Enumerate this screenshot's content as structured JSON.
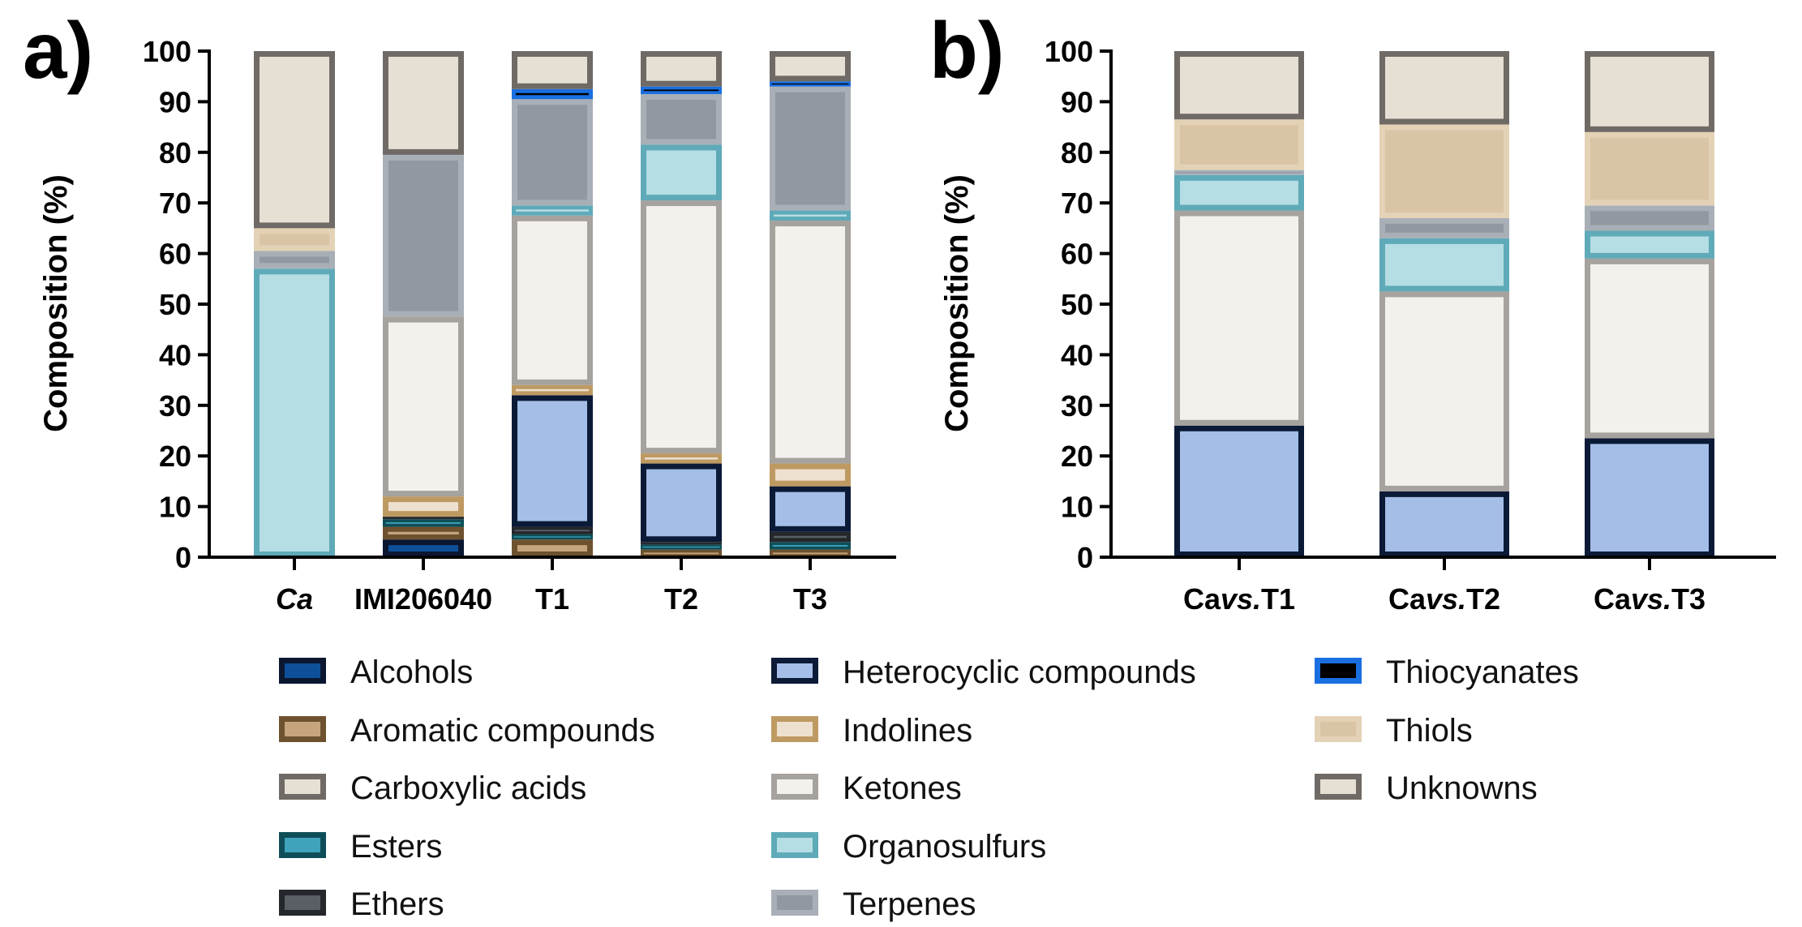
{
  "colors": {
    "Alcohols": {
      "fill": "#0E4F9A",
      "stroke": "#0B1730"
    },
    "Aromatic compounds": {
      "fill": "#C6A57E",
      "stroke": "#6E5230"
    },
    "Carboxylic acids": {
      "fill": "#E6DFD4",
      "stroke": "#6F6A65"
    },
    "Esters": {
      "fill": "#3FA3BC",
      "stroke": "#0F4E58"
    },
    "Ethers": {
      "fill": "#5A5F66",
      "stroke": "#24272B"
    },
    "Heterocyclic compounds": {
      "fill": "#A4BEE8",
      "stroke": "#0B1A36"
    },
    "Indolines": {
      "fill": "#EDE0CF",
      "stroke": "#BE9A63"
    },
    "Ketones": {
      "fill": "#F4F1EC",
      "stroke": "#A6A29D"
    },
    "Organosulfurs": {
      "fill": "#B5DDE4",
      "stroke": "#5FAAB8"
    },
    "Terpenes": {
      "fill": "#9198A1",
      "stroke": "#A8AFB6"
    },
    "Thiocyanates": {
      "fill": "#000000",
      "stroke": "#1A6FE0"
    },
    "Thiols": {
      "fill": "#D9C4A6",
      "stroke": "#E4D2B6"
    },
    "Unknowns": {
      "fill": "#E6DFD4",
      "stroke": "#6F6A65"
    }
  },
  "legend": {
    "columns": [
      [
        "Alcohols",
        "Aromatic compounds",
        "Carboxylic acids",
        "Esters",
        "Ethers"
      ],
      [
        "Heterocyclic compounds",
        "Indolines",
        "Ketones",
        "Organosulfurs",
        "Terpenes"
      ],
      [
        "Thiocyanates",
        "Thiols",
        "Unknowns"
      ]
    ]
  },
  "chart_data": [
    {
      "type": "bar",
      "stacked": true,
      "panel": "a)",
      "title": "",
      "xlabel": "",
      "ylabel": "Composition (%)",
      "ylim": [
        0,
        100
      ],
      "yticks": [
        0,
        10,
        20,
        30,
        40,
        50,
        60,
        70,
        80,
        90,
        100
      ],
      "categories": [
        "Ca",
        "IMI206040",
        "T1",
        "T2",
        "T3"
      ],
      "category_italic": [
        true,
        false,
        false,
        false,
        false
      ],
      "series": [
        {
          "name": "Alcohols",
          "values": [
            0,
            3.5,
            0,
            0,
            0
          ]
        },
        {
          "name": "Aromatic compounds",
          "values": [
            0,
            2.5,
            3.5,
            1.5,
            1.5
          ]
        },
        {
          "name": "Carboxylic acids",
          "values": [
            0,
            0,
            0,
            0,
            0
          ]
        },
        {
          "name": "Esters",
          "values": [
            0,
            1.5,
            1.0,
            1.0,
            1.5
          ]
        },
        {
          "name": "Ethers",
          "values": [
            0,
            0.5,
            1.5,
            0.5,
            2.0
          ]
        },
        {
          "name": "Heterocyclic compounds",
          "values": [
            0,
            0,
            26.0,
            15.5,
            9.0
          ]
        },
        {
          "name": "Indolines",
          "values": [
            0,
            4.0,
            2.0,
            2.0,
            4.5
          ]
        },
        {
          "name": "Ketones",
          "values": [
            0,
            35.5,
            33.5,
            50.0,
            48.0
          ]
        },
        {
          "name": "Organosulfurs",
          "values": [
            57.0,
            0,
            2.0,
            11.0,
            2.0
          ]
        },
        {
          "name": "Terpenes",
          "values": [
            3.5,
            32.0,
            21.0,
            10.0,
            24.5
          ]
        },
        {
          "name": "Thiocyanates",
          "values": [
            0,
            0,
            2.0,
            1.5,
            1.0
          ]
        },
        {
          "name": "Thiols",
          "values": [
            4.5,
            0,
            0,
            0,
            0
          ]
        },
        {
          "name": "Unknowns",
          "values": [
            35.0,
            20.5,
            7.5,
            7.0,
            6.0
          ]
        }
      ]
    },
    {
      "type": "bar",
      "stacked": true,
      "panel": "b)",
      "title": "",
      "xlabel": "",
      "ylabel": "Composition (%)",
      "ylim": [
        0,
        100
      ],
      "yticks": [
        0,
        10,
        20,
        30,
        40,
        50,
        60,
        70,
        80,
        90,
        100
      ],
      "categories": [
        {
          "prefix": "Ca",
          "italic": "vs.",
          "suffix": "T1"
        },
        {
          "prefix": "Ca",
          "italic": "vs.",
          "suffix": "T2"
        },
        {
          "prefix": "Ca",
          "italic": "vs.",
          "suffix": "T3"
        }
      ],
      "series": [
        {
          "name": "Heterocyclic compounds",
          "values": [
            26.0,
            13.0,
            23.5
          ]
        },
        {
          "name": "Ketones",
          "values": [
            42.5,
            39.5,
            35.5
          ]
        },
        {
          "name": "Organosulfurs",
          "values": [
            7.0,
            10.5,
            5.5
          ]
        },
        {
          "name": "Terpenes",
          "values": [
            1.0,
            4.0,
            5.0
          ]
        },
        {
          "name": "Thiols",
          "values": [
            10.0,
            18.5,
            14.5
          ]
        },
        {
          "name": "Unknowns",
          "values": [
            13.5,
            14.5,
            16.0
          ]
        }
      ]
    }
  ]
}
